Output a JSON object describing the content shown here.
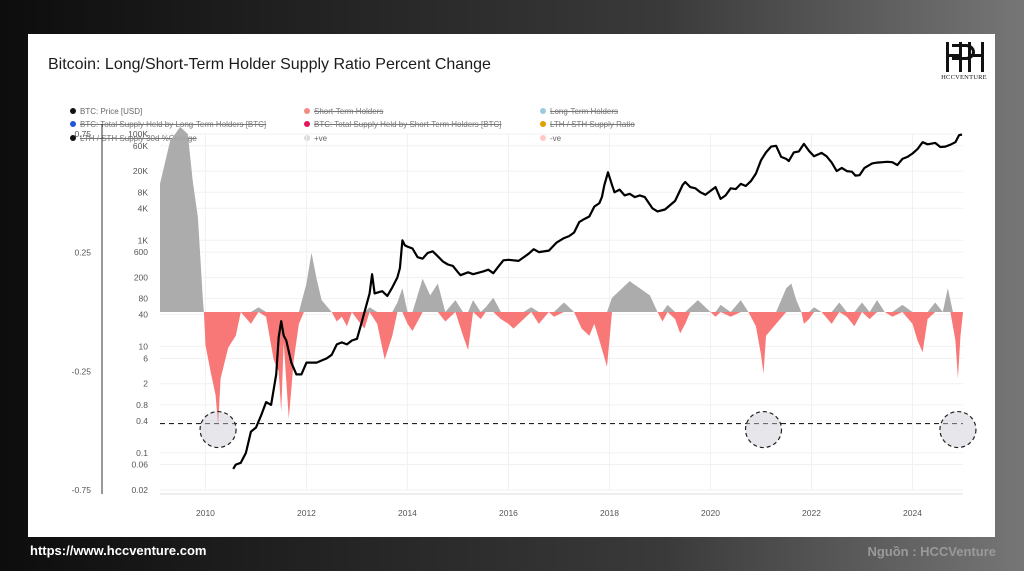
{
  "title": "Bitcoin: Long/Short-Term Holder Supply Ratio Percent Change",
  "logo": {
    "text": "HCCVENTURE"
  },
  "footer": {
    "website": "https://www.hccventure.com",
    "source": "Nguồn : HCCVenture"
  },
  "legend": [
    {
      "label": "BTC: Price [USD]",
      "color": "#111111",
      "active": true
    },
    {
      "label": "Short-Term Holders",
      "color": "#f28b82",
      "active": false
    },
    {
      "label": "Long-Term Holders",
      "color": "#9ecae1",
      "active": false
    },
    {
      "label": "BTC: Total Supply Held by Long-Term Holders [BTC]",
      "color": "#1f57d6",
      "active": false
    },
    {
      "label": "BTC: Total Supply Held by Short-Term Holders [BTC]",
      "color": "#e3165b",
      "active": false
    },
    {
      "label": "LTH / STH Supply Ratio",
      "color": "#e0a000",
      "active": false
    },
    {
      "label": "LTH / STH Supply 30d %Change",
      "color": "#111111",
      "active": false
    },
    {
      "label": "+ve",
      "color": "#d9d9d9",
      "active": true
    },
    {
      "label": "-ve",
      "color": "#ffc9c9",
      "active": true
    }
  ],
  "chart_data": {
    "type": "area",
    "title": "Bitcoin: Long/Short-Term Holder Supply Ratio Percent Change",
    "x_ticks": [
      "2010",
      "2012",
      "2014",
      "2016",
      "2018",
      "2020",
      "2022",
      "2024"
    ],
    "x_range": [
      2009.1,
      2025.0
    ],
    "left_axis": {
      "ticks": [
        "0.75",
        "0.25",
        "-0.25",
        "-0.75"
      ],
      "tick_values": [
        0.75,
        0.25,
        -0.25,
        -0.75
      ],
      "range": [
        -0.75,
        0.75
      ]
    },
    "price_axis": {
      "scale": "log",
      "ticks": [
        "100K",
        "60K",
        "20K",
        "8K",
        "4K",
        "1K",
        "600",
        "200",
        "80",
        "40",
        "10",
        "6",
        "2",
        "0.8",
        "0.4",
        "0.1",
        "0.06",
        "0.02"
      ],
      "tick_values": [
        100000,
        60000,
        20000,
        8000,
        4000,
        1000,
        600,
        200,
        80,
        40,
        10,
        6,
        2,
        0.8,
        0.4,
        0.1,
        0.06,
        0.02
      ],
      "range": [
        0.02,
        100000
      ]
    },
    "grid": true,
    "threshold_line": {
      "style": "dashed",
      "value": -0.47
    },
    "highlighted_extremes": [
      2010.25,
      2021.05,
      2024.9
    ],
    "series": [
      {
        "name": "LTH / STH Supply 30d %Change",
        "style": "area",
        "colors": {
          "positive": "#a8a8a8",
          "negative": "#f87171"
        },
        "points": [
          [
            2009.1,
            0.54
          ],
          [
            2009.3,
            0.72
          ],
          [
            2009.5,
            0.78
          ],
          [
            2009.65,
            0.75
          ],
          [
            2009.75,
            0.55
          ],
          [
            2009.85,
            0.4
          ],
          [
            2009.95,
            0.05
          ],
          [
            2009.97,
            0.0
          ],
          [
            2010.0,
            -0.14
          ],
          [
            2010.1,
            -0.25
          ],
          [
            2010.2,
            -0.35
          ],
          [
            2010.25,
            -0.48
          ],
          [
            2010.3,
            -0.28
          ],
          [
            2010.45,
            -0.15
          ],
          [
            2010.6,
            -0.1
          ],
          [
            2010.7,
            0.0
          ],
          [
            2010.9,
            -0.05
          ],
          [
            2011.05,
            0.02
          ],
          [
            2011.2,
            -0.02
          ],
          [
            2011.35,
            -0.2
          ],
          [
            2011.45,
            -0.25
          ],
          [
            2011.5,
            -0.42
          ],
          [
            2011.55,
            -0.13
          ],
          [
            2011.65,
            -0.45
          ],
          [
            2011.75,
            -0.2
          ],
          [
            2011.85,
            -0.05
          ],
          [
            2011.95,
            0.08
          ],
          [
            2012.0,
            0.12
          ],
          [
            2012.1,
            0.25
          ],
          [
            2012.2,
            0.14
          ],
          [
            2012.3,
            0.05
          ],
          [
            2012.5,
            0.0
          ],
          [
            2012.6,
            -0.04
          ],
          [
            2012.7,
            -0.02
          ],
          [
            2012.8,
            -0.06
          ],
          [
            2012.9,
            0.0
          ],
          [
            2013.0,
            -0.03
          ],
          [
            2013.15,
            -0.07
          ],
          [
            2013.25,
            0.02
          ],
          [
            2013.4,
            -0.05
          ],
          [
            2013.55,
            -0.2
          ],
          [
            2013.7,
            -0.1
          ],
          [
            2013.8,
            0.04
          ],
          [
            2013.9,
            0.1
          ],
          [
            2014.0,
            -0.05
          ],
          [
            2014.1,
            -0.08
          ],
          [
            2014.3,
            0.14
          ],
          [
            2014.45,
            0.07
          ],
          [
            2014.6,
            0.12
          ],
          [
            2014.75,
            -0.04
          ],
          [
            2014.95,
            0.05
          ],
          [
            2015.1,
            -0.1
          ],
          [
            2015.2,
            -0.16
          ],
          [
            2015.3,
            0.05
          ],
          [
            2015.45,
            -0.03
          ],
          [
            2015.55,
            0.02
          ],
          [
            2015.7,
            0.06
          ],
          [
            2015.85,
            -0.03
          ],
          [
            2016.0,
            -0.05
          ],
          [
            2016.1,
            -0.07
          ],
          [
            2016.3,
            -0.03
          ],
          [
            2016.45,
            0.02
          ],
          [
            2016.6,
            -0.05
          ],
          [
            2016.8,
            0.0
          ],
          [
            2016.9,
            -0.02
          ],
          [
            2017.1,
            0.04
          ],
          [
            2017.3,
            0.0
          ],
          [
            2017.45,
            -0.07
          ],
          [
            2017.6,
            -0.1
          ],
          [
            2017.7,
            -0.05
          ],
          [
            2017.8,
            -0.12
          ],
          [
            2017.95,
            -0.23
          ],
          [
            2018.05,
            0.06
          ],
          [
            2018.2,
            0.09
          ],
          [
            2018.4,
            0.13
          ],
          [
            2018.6,
            0.1
          ],
          [
            2018.8,
            0.07
          ],
          [
            2018.95,
            0.0
          ],
          [
            2019.05,
            -0.04
          ],
          [
            2019.15,
            0.03
          ],
          [
            2019.3,
            -0.03
          ],
          [
            2019.4,
            -0.09
          ],
          [
            2019.5,
            -0.05
          ],
          [
            2019.6,
            0.02
          ],
          [
            2019.75,
            0.05
          ],
          [
            2020.0,
            0.0
          ],
          [
            2020.1,
            -0.02
          ],
          [
            2020.2,
            0.03
          ],
          [
            2020.4,
            -0.02
          ],
          [
            2020.6,
            0.05
          ],
          [
            2020.75,
            0.0
          ],
          [
            2020.9,
            -0.06
          ],
          [
            2021.0,
            -0.18
          ],
          [
            2021.05,
            -0.26
          ],
          [
            2021.1,
            -0.1
          ],
          [
            2021.3,
            -0.05
          ],
          [
            2021.5,
            0.1
          ],
          [
            2021.6,
            0.12
          ],
          [
            2021.7,
            0.05
          ],
          [
            2021.8,
            0.0
          ],
          [
            2021.85,
            -0.05
          ],
          [
            2021.95,
            -0.03
          ],
          [
            2022.05,
            0.02
          ],
          [
            2022.2,
            0.0
          ],
          [
            2022.4,
            -0.05
          ],
          [
            2022.55,
            0.04
          ],
          [
            2022.7,
            -0.02
          ],
          [
            2022.85,
            -0.06
          ],
          [
            2023.0,
            0.04
          ],
          [
            2023.15,
            -0.03
          ],
          [
            2023.3,
            0.05
          ],
          [
            2023.45,
            0.0
          ],
          [
            2023.6,
            -0.02
          ],
          [
            2023.8,
            0.03
          ],
          [
            2024.0,
            -0.05
          ],
          [
            2024.1,
            -0.12
          ],
          [
            2024.2,
            -0.17
          ],
          [
            2024.3,
            -0.03
          ],
          [
            2024.45,
            0.04
          ],
          [
            2024.6,
            0.0
          ],
          [
            2024.7,
            0.1
          ],
          [
            2024.75,
            0.05
          ],
          [
            2024.8,
            -0.06
          ],
          [
            2024.85,
            -0.12
          ],
          [
            2024.9,
            -0.28
          ],
          [
            2024.95,
            -0.1
          ],
          [
            2025.0,
            0.0
          ]
        ]
      },
      {
        "name": "BTC: Price [USD]",
        "style": "line",
        "color": "#000000",
        "points": [
          [
            2010.55,
            0.05
          ],
          [
            2010.6,
            0.06
          ],
          [
            2010.7,
            0.065
          ],
          [
            2010.8,
            0.1
          ],
          [
            2010.9,
            0.25
          ],
          [
            2011.0,
            0.3
          ],
          [
            2011.1,
            0.5
          ],
          [
            2011.2,
            0.9
          ],
          [
            2011.3,
            0.8
          ],
          [
            2011.4,
            3
          ],
          [
            2011.45,
            15
          ],
          [
            2011.5,
            30
          ],
          [
            2011.55,
            16
          ],
          [
            2011.6,
            13
          ],
          [
            2011.7,
            5
          ],
          [
            2011.8,
            3
          ],
          [
            2011.9,
            3
          ],
          [
            2012.0,
            5
          ],
          [
            2012.1,
            5
          ],
          [
            2012.2,
            5
          ],
          [
            2012.4,
            6
          ],
          [
            2012.5,
            7
          ],
          [
            2012.6,
            11
          ],
          [
            2012.7,
            12
          ],
          [
            2012.8,
            11
          ],
          [
            2012.9,
            13
          ],
          [
            2013.0,
            14
          ],
          [
            2013.1,
            30
          ],
          [
            2013.25,
            100
          ],
          [
            2013.3,
            230
          ],
          [
            2013.35,
            100
          ],
          [
            2013.5,
            110
          ],
          [
            2013.6,
            90
          ],
          [
            2013.7,
            130
          ],
          [
            2013.8,
            200
          ],
          [
            2013.85,
            300
          ],
          [
            2013.9,
            1000
          ],
          [
            2013.95,
            800
          ],
          [
            2014.0,
            760
          ],
          [
            2014.1,
            700
          ],
          [
            2014.2,
            480
          ],
          [
            2014.3,
            450
          ],
          [
            2014.4,
            580
          ],
          [
            2014.5,
            620
          ],
          [
            2014.6,
            500
          ],
          [
            2014.7,
            400
          ],
          [
            2014.8,
            350
          ],
          [
            2014.9,
            330
          ],
          [
            2015.0,
            250
          ],
          [
            2015.05,
            220
          ],
          [
            2015.2,
            250
          ],
          [
            2015.3,
            230
          ],
          [
            2015.5,
            260
          ],
          [
            2015.6,
            280
          ],
          [
            2015.7,
            240
          ],
          [
            2015.8,
            320
          ],
          [
            2015.9,
            420
          ],
          [
            2016.0,
            430
          ],
          [
            2016.2,
            410
          ],
          [
            2016.4,
            560
          ],
          [
            2016.5,
            680
          ],
          [
            2016.6,
            600
          ],
          [
            2016.8,
            640
          ],
          [
            2016.95,
            900
          ],
          [
            2017.1,
            1100
          ],
          [
            2017.2,
            1200
          ],
          [
            2017.3,
            1400
          ],
          [
            2017.4,
            2200
          ],
          [
            2017.5,
            2500
          ],
          [
            2017.6,
            2800
          ],
          [
            2017.7,
            4300
          ],
          [
            2017.8,
            5000
          ],
          [
            2017.85,
            6500
          ],
          [
            2017.9,
            11000
          ],
          [
            2017.97,
            19000
          ],
          [
            2018.05,
            11000
          ],
          [
            2018.1,
            8000
          ],
          [
            2018.2,
            9000
          ],
          [
            2018.3,
            7000
          ],
          [
            2018.4,
            7500
          ],
          [
            2018.5,
            6500
          ],
          [
            2018.6,
            7000
          ],
          [
            2018.7,
            6500
          ],
          [
            2018.85,
            4000
          ],
          [
            2018.95,
            3500
          ],
          [
            2019.1,
            3800
          ],
          [
            2019.3,
            5500
          ],
          [
            2019.45,
            11000
          ],
          [
            2019.5,
            12500
          ],
          [
            2019.6,
            10000
          ],
          [
            2019.7,
            9500
          ],
          [
            2019.8,
            8000
          ],
          [
            2019.9,
            7200
          ],
          [
            2020.0,
            8500
          ],
          [
            2020.1,
            10000
          ],
          [
            2020.2,
            6000
          ],
          [
            2020.3,
            7000
          ],
          [
            2020.4,
            9500
          ],
          [
            2020.5,
            9200
          ],
          [
            2020.6,
            11500
          ],
          [
            2020.7,
            10500
          ],
          [
            2020.8,
            13000
          ],
          [
            2020.9,
            18000
          ],
          [
            2021.0,
            32000
          ],
          [
            2021.1,
            45000
          ],
          [
            2021.2,
            58000
          ],
          [
            2021.3,
            60000
          ],
          [
            2021.4,
            37000
          ],
          [
            2021.5,
            34000
          ],
          [
            2021.55,
            31000
          ],
          [
            2021.65,
            45000
          ],
          [
            2021.75,
            47000
          ],
          [
            2021.85,
            65000
          ],
          [
            2021.95,
            48000
          ],
          [
            2022.05,
            38000
          ],
          [
            2022.2,
            44000
          ],
          [
            2022.3,
            38000
          ],
          [
            2022.4,
            29000
          ],
          [
            2022.5,
            20000
          ],
          [
            2022.6,
            23000
          ],
          [
            2022.7,
            20000
          ],
          [
            2022.8,
            19500
          ],
          [
            2022.87,
            16500
          ],
          [
            2022.95,
            16800
          ],
          [
            2023.05,
            23000
          ],
          [
            2023.2,
            28000
          ],
          [
            2023.3,
            29000
          ],
          [
            2023.5,
            30000
          ],
          [
            2023.6,
            29500
          ],
          [
            2023.7,
            26000
          ],
          [
            2023.8,
            34000
          ],
          [
            2023.9,
            37000
          ],
          [
            2024.0,
            43000
          ],
          [
            2024.1,
            52000
          ],
          [
            2024.2,
            70000
          ],
          [
            2024.3,
            64000
          ],
          [
            2024.45,
            68000
          ],
          [
            2024.55,
            57000
          ],
          [
            2024.65,
            58000
          ],
          [
            2024.75,
            63000
          ],
          [
            2024.85,
            70000
          ],
          [
            2024.92,
            95000
          ],
          [
            2024.98,
            98000
          ]
        ]
      }
    ]
  }
}
